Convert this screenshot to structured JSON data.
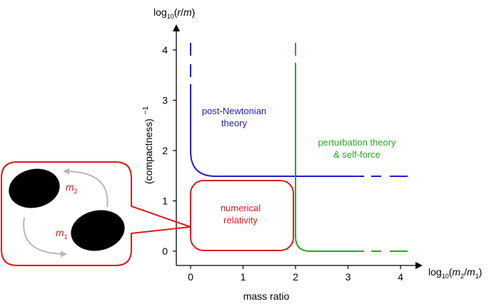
{
  "axes": {
    "y_label_base": "log",
    "y_label_sub": "10",
    "y_label_arg": "r",
    "y_label_div": "m",
    "y_side_label": "(compactness)",
    "y_side_exp": "−1",
    "x_label_base": "log",
    "x_label_sub": "10",
    "x_label_m2": "m",
    "x_label_m2_sub": "2",
    "x_label_m1": "m",
    "x_label_m1_sub": "1",
    "x_caption": "mass ratio",
    "x_ticks": [
      "0",
      "1",
      "2",
      "3",
      "4"
    ],
    "y_ticks": [
      "0",
      "1",
      "2",
      "3",
      "4"
    ]
  },
  "regions": {
    "post_newtonian": [
      "post-Newtonian",
      "theory"
    ],
    "perturbation": [
      "perturbation theory",
      "& self-force"
    ],
    "numerical": [
      "numerical",
      "relativity"
    ]
  },
  "binary": {
    "m2_base": "m",
    "m2_sub": "2",
    "m1_base": "m",
    "m1_sub": "1"
  },
  "colors": {
    "post_newtonian": "#1f1fd6",
    "perturbation": "#22aa22",
    "numerical": "#e01b1b",
    "axis": "#000000",
    "arrow": "#b8b8b8"
  }
}
